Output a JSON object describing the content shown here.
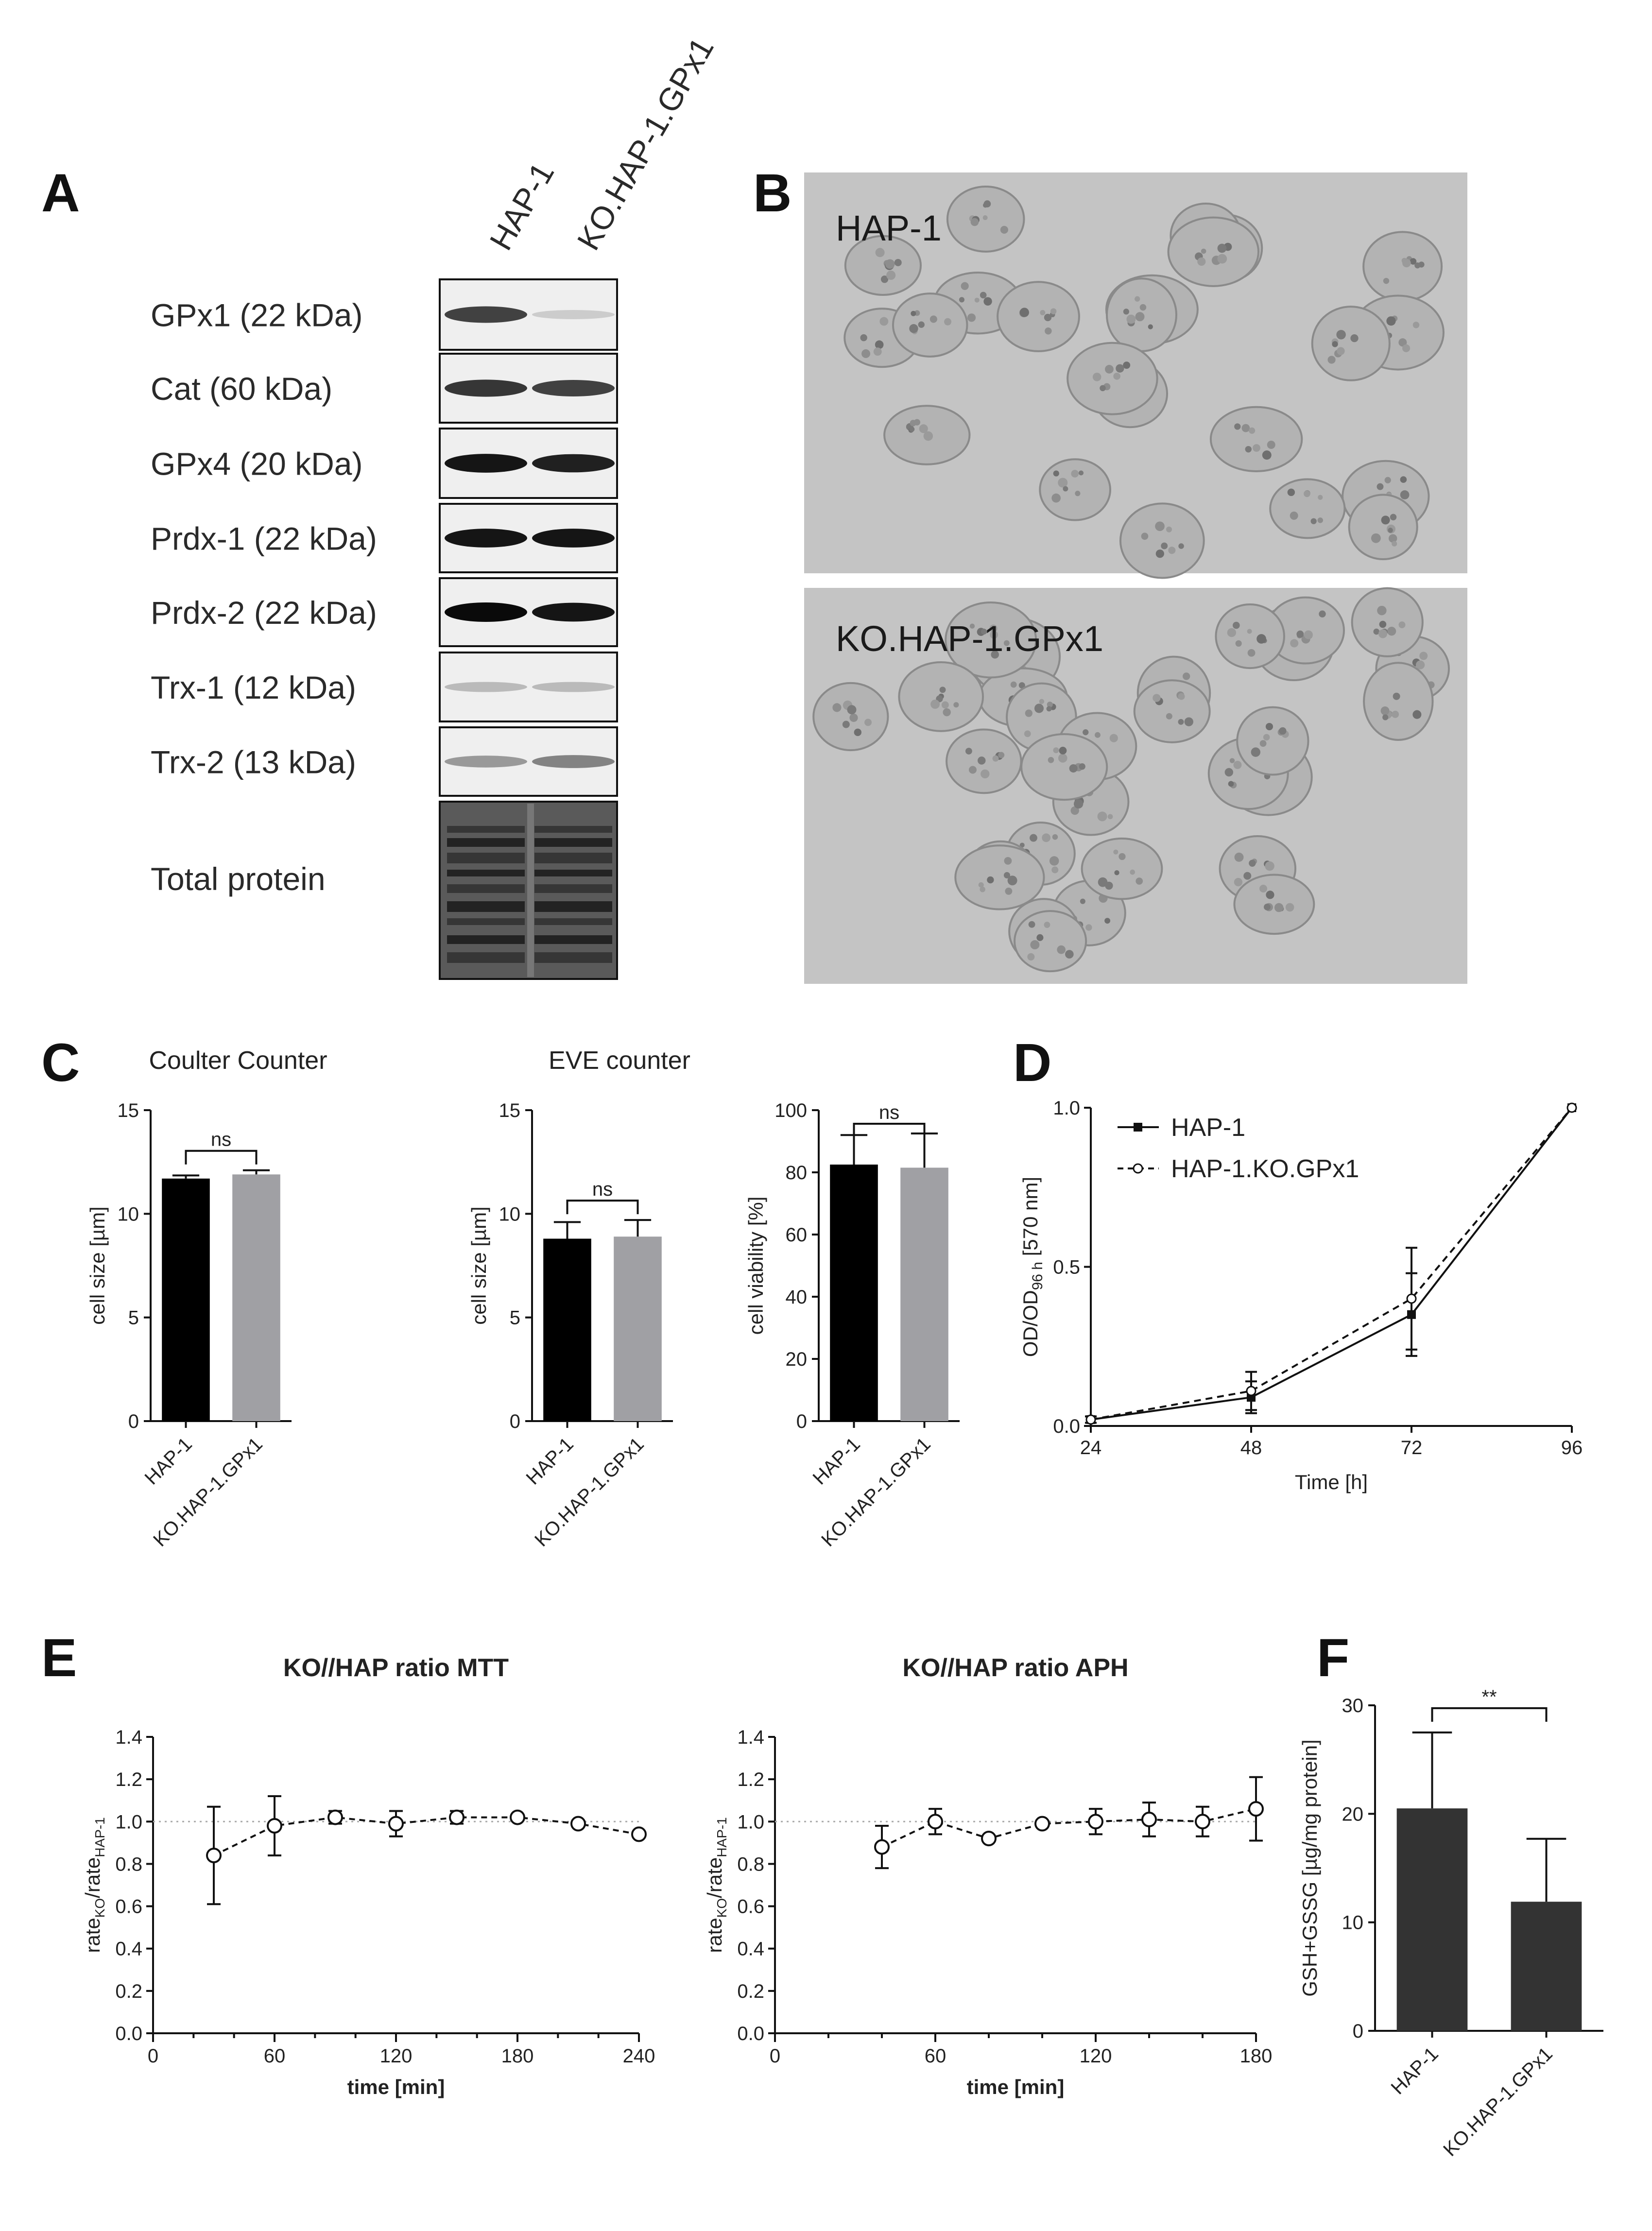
{
  "panels": {
    "A": {
      "label": "A",
      "lanes": [
        "HAP-1",
        "KO.HAP-1.GPx1"
      ],
      "blots": [
        {
          "name": "GPx1 (22 kDa)",
          "band_intensity": [
            0.75,
            0.12
          ]
        },
        {
          "name": "Cat (60 kDa)",
          "band_intensity": [
            0.8,
            0.75
          ]
        },
        {
          "name": "GPx4 (20 kDa)",
          "band_intensity": [
            0.95,
            0.9
          ]
        },
        {
          "name": "Prdx-1 (22 kDa)",
          "band_intensity": [
            0.95,
            0.95
          ]
        },
        {
          "name": "Prdx-2 (22 kDa)",
          "band_intensity": [
            1.0,
            0.95
          ]
        },
        {
          "name": "Trx-1 (12 kDa)",
          "band_intensity": [
            0.2,
            0.2
          ]
        },
        {
          "name": "Trx-2 (13 kDa)",
          "band_intensity": [
            0.35,
            0.45
          ]
        },
        {
          "name": "Total protein",
          "band_intensity": [
            1.0,
            1.0
          ]
        }
      ]
    },
    "B": {
      "label": "B",
      "images": [
        {
          "caption": "HAP-1"
        },
        {
          "caption": "KO.HAP-1.GPx1"
        }
      ]
    },
    "C": {
      "label": "C"
    },
    "D": {
      "label": "D"
    },
    "E": {
      "label": "E"
    },
    "F": {
      "label": "F"
    }
  },
  "chart_data": [
    {
      "id": "C1",
      "type": "bar",
      "title": "Coulter Counter",
      "categories": [
        "HAP-1",
        "KO.HAP-1.GPx1"
      ],
      "values": [
        11.7,
        11.9
      ],
      "errors": [
        0.15,
        0.2
      ],
      "colors": [
        "#000000",
        "#a0a0a4"
      ],
      "ylabel": "cell size [µm]",
      "ylim": [
        0,
        15
      ],
      "yticks": [
        0,
        5,
        10,
        15
      ],
      "significance": "ns"
    },
    {
      "id": "C2",
      "type": "bar",
      "title": "EVE counter",
      "categories": [
        "HAP-1",
        "KO.HAP-1.GPx1"
      ],
      "values": [
        8.8,
        8.9
      ],
      "errors": [
        0.8,
        0.8
      ],
      "colors": [
        "#000000",
        "#a0a0a4"
      ],
      "ylabel": "cell size [µm]",
      "ylim": [
        0,
        15
      ],
      "yticks": [
        0,
        5,
        10,
        15
      ],
      "significance": "ns"
    },
    {
      "id": "C3",
      "type": "bar",
      "title": "",
      "categories": [
        "HAP-1",
        "KO.HAP-1.GPx1"
      ],
      "values": [
        82.5,
        81.5
      ],
      "errors": [
        9.5,
        11
      ],
      "colors": [
        "#000000",
        "#a0a0a4"
      ],
      "ylabel": "cell viability [%]",
      "ylim": [
        0,
        100
      ],
      "yticks": [
        0,
        20,
        40,
        60,
        80,
        100
      ],
      "significance": "ns"
    },
    {
      "id": "D",
      "type": "line",
      "xlabel": "Time [h]",
      "ylabel": "OD/OD96 h [570 nm]",
      "ylabel_parts": {
        "a": "OD/OD",
        "sub": "96 h",
        "b": " [570 nm]"
      },
      "xlim": [
        24,
        96
      ],
      "ylim": [
        0,
        1
      ],
      "xticks": [
        24,
        48,
        72,
        96
      ],
      "yticks": [
        "0.0",
        "0.5",
        "1.0"
      ],
      "legend": "top-left",
      "series": [
        {
          "name": "HAP-1",
          "x": [
            24,
            48,
            72,
            96
          ],
          "y": [
            0.02,
            0.09,
            0.35,
            1.0
          ],
          "err": [
            0.01,
            0.05,
            0.13,
            0.0
          ],
          "style": "solid-square"
        },
        {
          "name": "HAP-1.KO.GPx1",
          "x": [
            24,
            48,
            72,
            96
          ],
          "y": [
            0.02,
            0.11,
            0.4,
            1.0
          ],
          "err": [
            0.01,
            0.06,
            0.16,
            0.0
          ],
          "style": "dashed-circle"
        }
      ]
    },
    {
      "id": "E1",
      "type": "line",
      "title": "KO//HAP ratio MTT",
      "xlabel": "time [min]",
      "ylabel": "rateKO/rateHAP-1",
      "ylabel_parts": {
        "a": "rate",
        "sub1": "KO",
        "b": "/rate",
        "sub2": "HAP-1"
      },
      "xlim": [
        0,
        240
      ],
      "ylim": [
        0,
        1.4
      ],
      "xticks": [
        0,
        60,
        120,
        180,
        240
      ],
      "yticks": [
        "0.0",
        "0.2",
        "0.4",
        "0.6",
        "0.8",
        "1.0",
        "1.2",
        "1.4"
      ],
      "reference_line": 1.0,
      "series": [
        {
          "x": [
            30,
            60,
            90,
            120,
            150,
            180,
            210,
            240
          ],
          "y": [
            0.84,
            0.98,
            1.02,
            0.99,
            1.02,
            1.02,
            0.99,
            0.94
          ],
          "err": [
            0.23,
            0.14,
            0.03,
            0.06,
            0.03,
            0.01,
            0.01,
            0.01
          ]
        }
      ]
    },
    {
      "id": "E2",
      "type": "line",
      "title": "KO//HAP ratio APH",
      "xlabel": "time [min]",
      "ylabel": "rateKO/rateHAP-1",
      "ylabel_parts": {
        "a": "rate",
        "sub1": "KO",
        "b": "/rate",
        "sub2": "HAP-1"
      },
      "xlim": [
        0,
        180
      ],
      "ylim": [
        0,
        1.4
      ],
      "xticks": [
        0,
        60,
        120,
        180
      ],
      "yticks": [
        "0.0",
        "0.2",
        "0.4",
        "0.6",
        "0.8",
        "1.0",
        "1.2",
        "1.4"
      ],
      "reference_line": 1.0,
      "series": [
        {
          "x": [
            40,
            60,
            80,
            100,
            120,
            140,
            160,
            180
          ],
          "y": [
            0.88,
            1.0,
            0.92,
            0.99,
            1.0,
            1.01,
            1.0,
            1.06
          ],
          "err": [
            0.1,
            0.06,
            0.01,
            0.01,
            0.06,
            0.08,
            0.07,
            0.15
          ]
        }
      ]
    },
    {
      "id": "F",
      "type": "bar",
      "categories": [
        "HAP-1",
        "KO.HAP-1.GPx1"
      ],
      "values": [
        20.5,
        11.9
      ],
      "errors": [
        7.0,
        5.8
      ],
      "colors": [
        "#333333",
        "#333333"
      ],
      "ylabel": "GSH+GSSG [µg/mg protein]",
      "ylim": [
        0,
        30
      ],
      "yticks": [
        0,
        10,
        20,
        30
      ],
      "significance": "**"
    }
  ]
}
